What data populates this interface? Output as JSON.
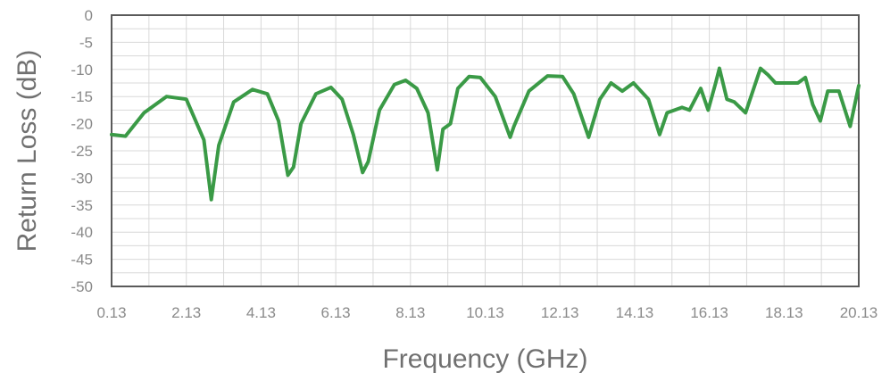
{
  "chart_data": {
    "type": "line",
    "title": "",
    "xlabel": "Frequency (GHz)",
    "ylabel": "Return Loss (dB)",
    "xlim": [
      0.13,
      20.13
    ],
    "ylim": [
      -50,
      0
    ],
    "x_ticks": [
      "0.13",
      "2.13",
      "4.13",
      "6.13",
      "8.13",
      "10.13",
      "12.13",
      "14.13",
      "16.13",
      "18.13",
      "20.13"
    ],
    "y_ticks": [
      "0",
      "-5",
      "-10",
      "-15",
      "-20",
      "-25",
      "-30",
      "-35",
      "-40",
      "-45",
      "-50"
    ],
    "grid": true,
    "colors": {
      "series": "#3a9a46",
      "grid": "#d8d8d8",
      "frame": "#5a5a5a",
      "text": "#8a8a8a"
    },
    "series": [
      {
        "x": [
          0.13,
          0.5,
          1.0,
          1.6,
          2.13,
          2.6,
          2.8,
          3.0,
          3.4,
          3.9,
          4.3,
          4.6,
          4.85,
          5.0,
          5.2,
          5.6,
          6.0,
          6.3,
          6.6,
          6.85,
          7.0,
          7.3,
          7.7,
          8.0,
          8.3,
          8.6,
          8.85,
          9.0,
          9.2,
          9.4,
          9.7,
          10.0,
          10.4,
          10.8,
          10.9,
          11.3,
          11.8,
          12.2,
          12.5,
          12.9,
          13.2,
          13.5,
          13.8,
          14.1,
          14.5,
          14.8,
          15.0,
          15.4,
          15.6,
          15.9,
          16.1,
          16.3,
          16.4,
          16.6,
          16.8,
          17.1,
          17.5,
          17.7,
          17.9,
          18.1,
          18.3,
          18.5,
          18.7,
          18.9,
          19.1,
          19.3,
          19.6,
          19.9,
          20.13
        ],
        "y": [
          -22,
          -22.3,
          -18,
          -15,
          -15.5,
          -23,
          -34,
          -24,
          -16,
          -13.7,
          -14.5,
          -19.5,
          -29.5,
          -28,
          -20,
          -14.5,
          -13.3,
          -15.5,
          -22,
          -29,
          -27,
          -17.5,
          -12.8,
          -12,
          -13.5,
          -18,
          -28.5,
          -21,
          -20,
          -13.5,
          -11.3,
          -11.5,
          -15,
          -22.5,
          -20.5,
          -14,
          -11.2,
          -11.3,
          -14.5,
          -22.5,
          -15.5,
          -12.5,
          -14,
          -12.5,
          -15.5,
          -22,
          -18,
          -17,
          -17.5,
          -13.5,
          -17.5,
          -12.5,
          -9.8,
          -15.5,
          -16,
          -18,
          -9.8,
          -11,
          -12.5,
          -12.5,
          -12.5,
          -12.5,
          -11.5,
          -16.5,
          -19.5,
          -14,
          -14,
          -20.5,
          -13
        ]
      }
    ]
  }
}
